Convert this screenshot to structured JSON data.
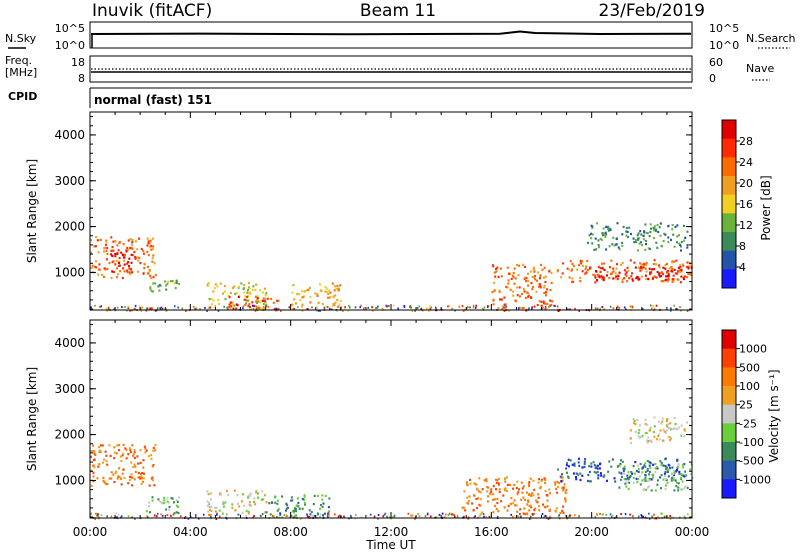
{
  "header": {
    "station": "Inuvik (fitACF)",
    "beam": "Beam 11",
    "date": "23/Feb/2019"
  },
  "status_panels": {
    "nsky_label": "N.Sky",
    "nsky_ticks": [
      "10^5",
      "10^0"
    ],
    "nsearch_label": "N.Search",
    "nsearch_ticks": [
      "10^5",
      "10^0"
    ],
    "freq_label": "Freq.",
    "freq_unit": "[MHz]",
    "freq_ticks": [
      "18",
      "8"
    ],
    "nave_label": "Nave",
    "nave_ticks": [
      "60",
      "0"
    ],
    "cpid_label": "CPID",
    "cpid_value": "normal (fast) 151"
  },
  "colors": {
    "power": [
      "#1a1aff",
      "#2255aa",
      "#3a8a5a",
      "#6ab23a",
      "#f0d020",
      "#f0a020",
      "#ff6a00",
      "#ff2a00",
      "#e00000"
    ],
    "velocity": [
      "#1a1aff",
      "#2a5aaa",
      "#3a8a5a",
      "#6acd3a",
      "#c8c8c8",
      "#f0a020",
      "#ff7a00",
      "#ff4000",
      "#e00000"
    ]
  },
  "chart_data": [
    {
      "type": "heatmap",
      "name": "power",
      "ylabel": "Slant Range [km]",
      "ylim": [
        180,
        4500
      ],
      "y_ticks": [
        "1000",
        "2000",
        "3000",
        "4000"
      ],
      "colorbar_label": "Power [dB]",
      "colorbar_ticks": [
        "4",
        "8",
        "12",
        "16",
        "20",
        "24",
        "28"
      ],
      "regions": [
        {
          "x": [
            0,
            2.6
          ],
          "y": [
            900,
            1800
          ],
          "level": 6
        },
        {
          "x": [
            0.8,
            1.8
          ],
          "y": [
            1000,
            1500
          ],
          "level": 8
        },
        {
          "x": [
            2.2,
            3.6
          ],
          "y": [
            600,
            900
          ],
          "level": 3
        },
        {
          "x": [
            4.6,
            7.0
          ],
          "y": [
            300,
            800
          ],
          "level": 4
        },
        {
          "x": [
            5.5,
            7.6
          ],
          "y": [
            200,
            500
          ],
          "level": 7
        },
        {
          "x": [
            8.0,
            10.0
          ],
          "y": [
            300,
            800
          ],
          "level": 5
        },
        {
          "x": [
            16.0,
            18.4
          ],
          "y": [
            200,
            1200
          ],
          "level": 6
        },
        {
          "x": [
            18.6,
            24.0
          ],
          "y": [
            800,
            1300
          ],
          "level": 6
        },
        {
          "x": [
            19.8,
            24.0
          ],
          "y": [
            850,
            1150
          ],
          "level": 8
        },
        {
          "x": [
            19.8,
            23.8
          ],
          "y": [
            1500,
            2100
          ],
          "level": 2
        }
      ]
    },
    {
      "type": "heatmap",
      "name": "velocity",
      "xlabel": "Time UT",
      "ylabel": "Slant Range [km]",
      "xlim": [
        0,
        24
      ],
      "x_ticks": [
        "00:00",
        "04:00",
        "08:00",
        "12:00",
        "16:00",
        "20:00",
        "00:00"
      ],
      "ylim": [
        180,
        4500
      ],
      "y_ticks": [
        "1000",
        "2000",
        "3000",
        "4000"
      ],
      "colorbar_label": "Velocity [m s⁻¹]",
      "colorbar_ticks": [
        "1000",
        "500",
        "100",
        "25",
        "-25",
        "-100",
        "-500",
        "-1000"
      ],
      "regions": [
        {
          "x": [
            0,
            2.6
          ],
          "y": [
            900,
            1800
          ],
          "level": 6
        },
        {
          "x": [
            2.2,
            3.6
          ],
          "y": [
            300,
            700
          ],
          "level": 3
        },
        {
          "x": [
            4.6,
            7.0
          ],
          "y": [
            300,
            800
          ],
          "level": 4
        },
        {
          "x": [
            7.0,
            9.6
          ],
          "y": [
            200,
            700
          ],
          "level": 2
        },
        {
          "x": [
            14.8,
            19.0
          ],
          "y": [
            300,
            1100
          ],
          "level": 6
        },
        {
          "x": [
            18.6,
            23.8
          ],
          "y": [
            1000,
            1500
          ],
          "level": 1
        },
        {
          "x": [
            21.0,
            24.0
          ],
          "y": [
            800,
            1400
          ],
          "level": 3
        },
        {
          "x": [
            21.5,
            23.8
          ],
          "y": [
            1800,
            2400
          ],
          "level": 4
        }
      ]
    }
  ]
}
